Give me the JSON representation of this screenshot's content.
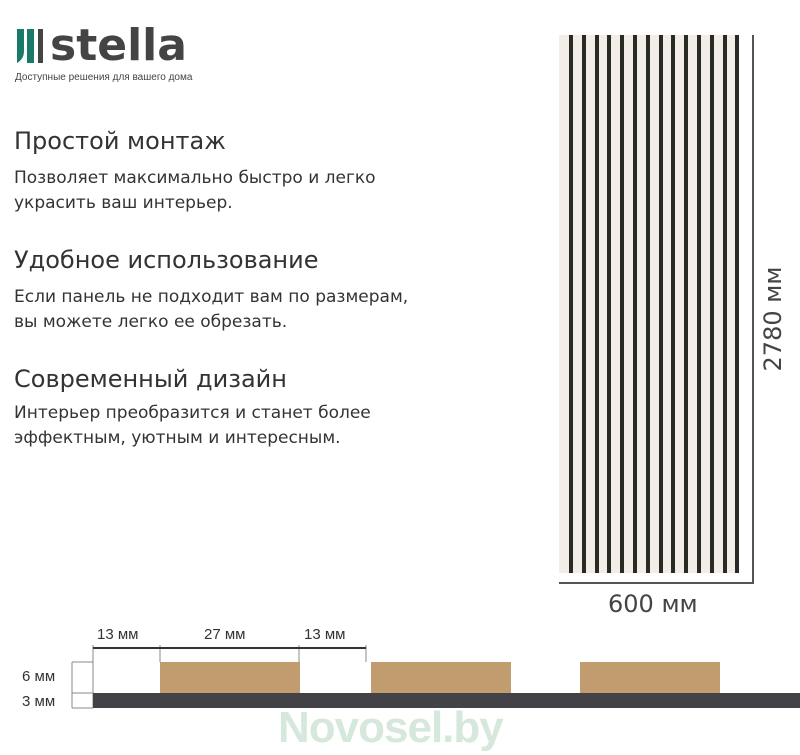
{
  "brand": {
    "name": "stella",
    "tagline": "Доступные решения для вашего дома",
    "accent": "#1a7a6a"
  },
  "features": [
    {
      "title": "Простой монтаж",
      "text1": "Позволяет максимально быстро и легко",
      "text2": "украсить ваш интерьер."
    },
    {
      "title": "Удобное использование",
      "text1": "Если панель не подходит вам по размерам,",
      "text2": "вы можете легко ее обрезать."
    },
    {
      "title": "Современный дизайн",
      "text1": "Интерьер преобразится и станет более",
      "text2": "эффектным, уютным и интересным."
    }
  ],
  "panel": {
    "height_label": "2780 мм",
    "width_label": "600 мм",
    "slat_count": 14
  },
  "profile": {
    "gap1": "13 мм",
    "slat": "27 мм",
    "gap2": "13 мм",
    "slat_height": "6 мм",
    "base_height": "3 мм",
    "wood_color": "#c09c6e",
    "base_color": "#434246"
  },
  "watermark": "Novosel.by"
}
